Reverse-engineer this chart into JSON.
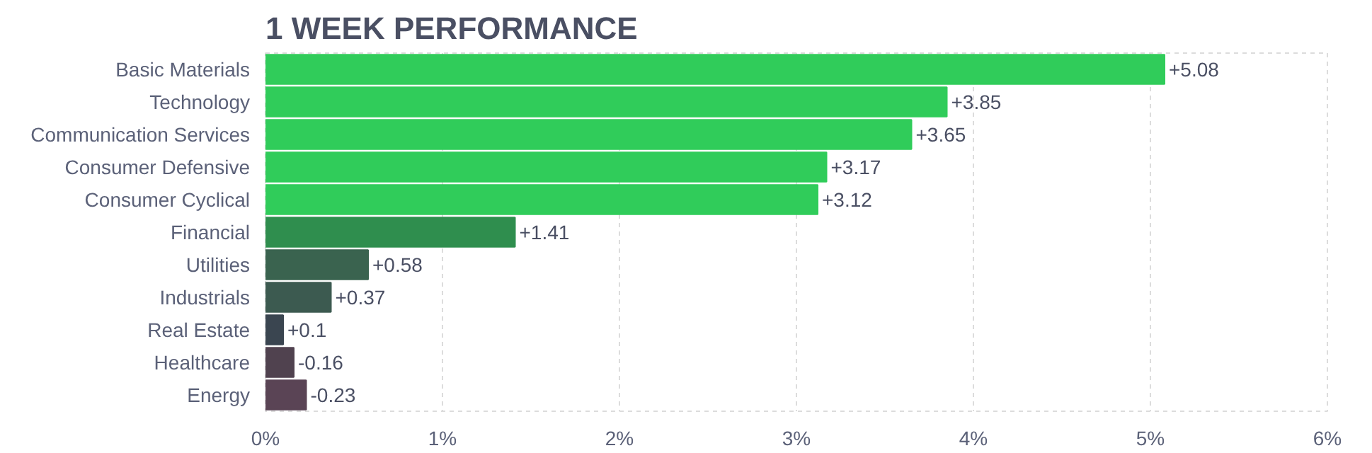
{
  "chart_data": {
    "type": "bar",
    "orientation": "horizontal",
    "title": "1 WEEK PERFORMANCE",
    "categories": [
      "Basic Materials",
      "Technology",
      "Communication Services",
      "Consumer Defensive",
      "Consumer Cyclical",
      "Financial",
      "Utilities",
      "Industrials",
      "Real Estate",
      "Healthcare",
      "Energy"
    ],
    "values": [
      5.08,
      3.85,
      3.65,
      3.17,
      3.12,
      1.41,
      0.58,
      0.37,
      0.1,
      -0.16,
      -0.23
    ],
    "base": [
      0,
      0,
      0,
      0,
      0,
      0,
      0,
      0,
      0,
      0.16,
      0.23
    ],
    "value_labels": [
      "+5.08",
      "+3.85",
      "+3.65",
      "+3.17",
      "+3.12",
      "+1.41",
      "+0.58",
      "+0.37",
      "+0.1",
      "-0.16",
      "-0.23"
    ],
    "colors": [
      "#30cc5a",
      "#30cc5a",
      "#30cc5a",
      "#30cc5a",
      "#30cc5a",
      "#2f8e4e",
      "#3a634f",
      "#3c5a50",
      "#3a4550",
      "#50424f",
      "#5a4455"
    ],
    "xlim": [
      0,
      6
    ],
    "xticks": [
      {
        "value": 0,
        "label": "0%"
      },
      {
        "value": 1,
        "label": "1%"
      },
      {
        "value": 2,
        "label": "2%"
      },
      {
        "value": 3,
        "label": "3%"
      },
      {
        "value": 4,
        "label": "4%"
      },
      {
        "value": 5,
        "label": "5%"
      },
      {
        "value": 6,
        "label": "6%"
      }
    ],
    "grid": "x"
  }
}
